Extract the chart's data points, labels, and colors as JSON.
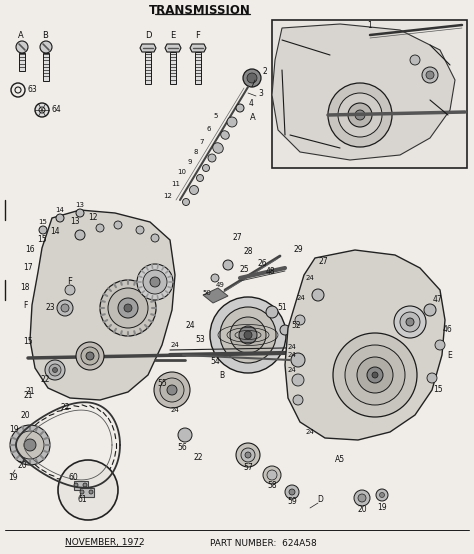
{
  "title": "TRANSMISSION",
  "footer_left": "NOVEMBER, 1972",
  "footer_right": "PART NUMBER:  624A58",
  "bg_color": "#f0ede8",
  "line_color": "#1a1a1a",
  "text_color": "#111111",
  "title_fontsize": 8.5,
  "label_fontsize": 5.5,
  "footer_fontsize": 6.5,
  "figsize": [
    4.74,
    5.54
  ],
  "dpi": 100
}
